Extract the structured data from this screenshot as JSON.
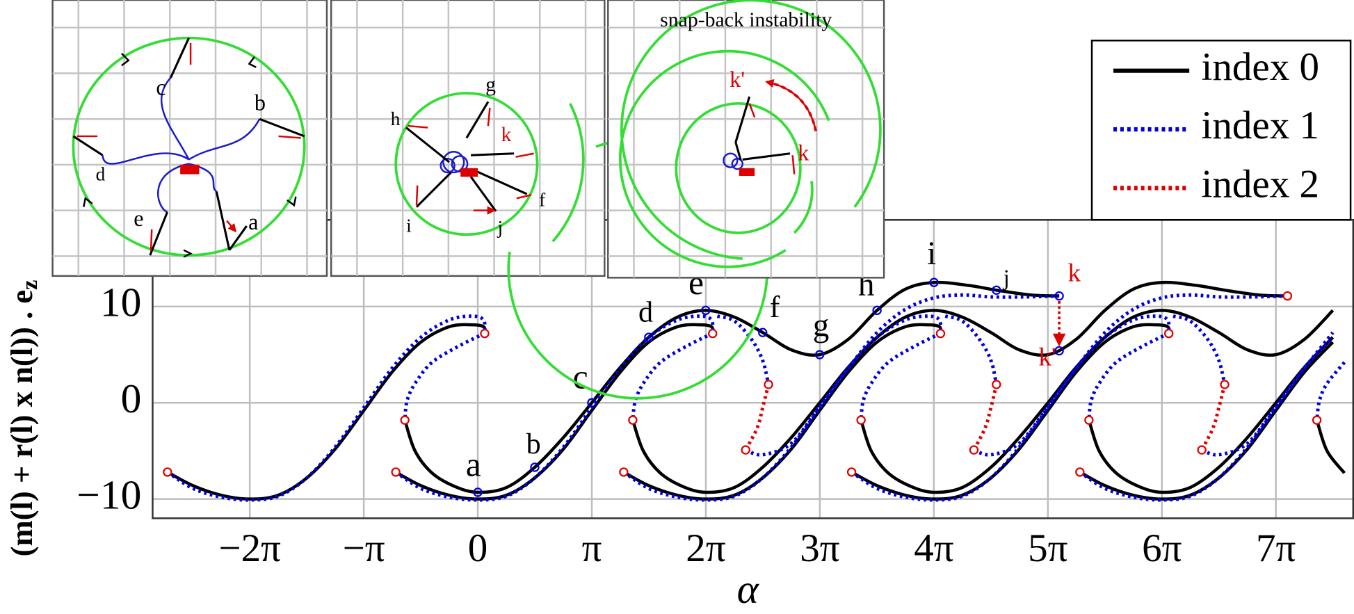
{
  "chart_data": {
    "type": "line",
    "xlabel": "α",
    "ylabel": "(m(l) + r(l) x n(l)) . e",
    "ylabel_sub": "z",
    "xlim": [
      -8.96,
      24.12
    ],
    "ylim": [
      -12,
      19
    ],
    "xticks": [
      {
        "value": -6.2832,
        "label": "−2π"
      },
      {
        "value": -3.1416,
        "label": "−π"
      },
      0,
      {
        "value": 3.1416,
        "label": "π"
      },
      {
        "value": 6.2832,
        "label": "2π"
      },
      {
        "value": 9.4248,
        "label": "3π"
      },
      {
        "value": 12.5664,
        "label": "4π"
      },
      {
        "value": 15.708,
        "label": "5π"
      },
      {
        "value": 18.8496,
        "label": "6π"
      },
      {
        "value": 21.9911,
        "label": "7π"
      }
    ],
    "yticks": [
      {
        "value": -10,
        "label": "−10"
      },
      0,
      10
    ],
    "grid": true,
    "legend": "upper right",
    "series": [
      {
        "name": "index 0",
        "color": "#000000",
        "style": "solid",
        "segments": [
          {
            "x": [
              -8.55,
              -7.85,
              -7.07,
              -6.28,
              -5.5,
              -4.71,
              -3.93,
              -3.14,
              -2.36,
              -1.57,
              -0.79,
              -0.16,
              0.16,
              0.19
            ],
            "values": [
              -7.2,
              -8.6,
              -9.6,
              -10,
              -9.6,
              -7.8,
              -4.8,
              -0.8,
              3.2,
              6.3,
              7.9,
              8.1,
              7.9,
              7.2
            ]
          },
          {
            "x": [
              -2.26,
              -1.57,
              -0.79,
              0,
              0.79,
              1.57,
              2.36,
              3.14,
              3.93,
              4.71,
              5.5,
              6.13,
              6.44,
              6.47
            ],
            "values": [
              -7.2,
              -8.6,
              -9.6,
              -10,
              -9.6,
              -7.8,
              -4.8,
              -0.8,
              3.2,
              6.3,
              7.9,
              8.1,
              7.9,
              7.2
            ]
          },
          {
            "x": [
              4.02,
              4.71,
              5.5,
              6.28,
              7.07,
              7.85,
              8.64,
              9.42,
              10.21,
              11.0,
              11.78,
              12.41,
              12.72,
              12.75
            ],
            "values": [
              -7.2,
              -8.6,
              -9.6,
              -10,
              -9.6,
              -7.8,
              -4.8,
              -0.8,
              3.2,
              6.3,
              7.9,
              8.1,
              7.9,
              7.2
            ]
          },
          {
            "x": [
              10.3,
              11.0,
              11.78,
              12.57,
              13.35,
              14.14,
              14.92,
              15.71,
              16.49,
              17.28,
              18.06,
              18.69,
              19.01,
              19.04
            ],
            "values": [
              -7.2,
              -8.6,
              -9.6,
              -10,
              -9.6,
              -7.8,
              -4.8,
              -0.8,
              3.2,
              6.3,
              7.9,
              8.1,
              7.9,
              7.2
            ]
          },
          {
            "x": [
              16.59,
              17.28,
              18.06,
              18.85,
              19.63,
              20.42,
              21.21,
              21.99,
              22.78,
              23.56
            ],
            "values": [
              -7.2,
              -8.6,
              -9.6,
              -10,
              -9.6,
              -7.8,
              -4.8,
              -0.8,
              3.2,
              6.3
            ]
          },
          {
            "x": [
              -2.01,
              -1.73,
              -1.26,
              -0.63,
              0,
              0.79,
              1.57,
              2.36,
              3.14,
              3.93,
              4.71,
              5.5,
              6.28,
              7.07,
              7.85,
              8.64,
              9.42,
              10.21,
              11.0,
              11.78,
              12.57,
              13.51,
              14.29,
              15.24,
              16.02
            ],
            "values": [
              -1.8,
              -5,
              -7.3,
              -8.7,
              -9.3,
              -8.8,
              -6.7,
              -3.6,
              0,
              3.7,
              6.8,
              8.9,
              9.6,
              8.9,
              7.3,
              5.5,
              5,
              6.6,
              9.6,
              11.8,
              12.5,
              12.2,
              11.7,
              11.2,
              11.1
            ]
          },
          {
            "x": [
              4.27,
              4.56,
              5.03,
              5.65,
              6.28,
              7.07,
              7.85,
              8.64,
              9.42,
              10.21,
              11.0,
              11.78,
              12.57,
              13.35,
              14.14,
              14.92,
              15.71,
              16.49,
              17.28,
              18.06,
              18.85,
              19.79,
              20.58,
              21.52,
              22.31
            ],
            "values": [
              -1.8,
              -5,
              -7.3,
              -8.7,
              -9.3,
              -8.8,
              -6.7,
              -3.6,
              0,
              3.7,
              6.8,
              8.9,
              9.6,
              8.9,
              7.3,
              5.5,
              5,
              6.6,
              9.6,
              11.8,
              12.5,
              12.2,
              11.7,
              11.2,
              11.1
            ]
          },
          {
            "x": [
              10.56,
              10.84,
              11.31,
              11.94,
              12.57,
              13.35,
              14.14,
              14.92,
              15.71,
              16.49,
              17.28,
              18.06,
              18.85,
              19.63,
              20.42,
              21.21,
              21.99,
              22.78,
              23.56
            ],
            "values": [
              -1.8,
              -5,
              -7.3,
              -8.7,
              -9.3,
              -8.8,
              -6.7,
              -3.6,
              0,
              3.7,
              6.8,
              8.9,
              9.6,
              8.9,
              7.3,
              5.5,
              5,
              6.6,
              9.6
            ]
          },
          {
            "x": [
              16.84,
              17.12,
              17.59,
              18.22,
              18.85,
              19.63,
              20.42,
              21.21,
              21.99,
              22.78,
              23.56
            ],
            "values": [
              -1.8,
              -5,
              -7.3,
              -8.7,
              -9.3,
              -8.8,
              -6.7,
              -3.6,
              0,
              3.7,
              6.8
            ]
          },
          {
            "x": [
              23.12,
              23.4,
              23.88
            ],
            "values": [
              -1.8,
              -5,
              -7.3
            ]
          }
        ]
      },
      {
        "name": "index 1",
        "color": "#0000dd",
        "style": "dotted",
        "segments": [
          {
            "x": [
              -8.55,
              -7.85,
              -7.07,
              -6.28,
              -5.5,
              -4.71,
              -3.93,
              -3.14,
              -2.36,
              -1.57,
              -0.79,
              -0.16,
              0.16,
              0.19
            ],
            "values": [
              -7.2,
              -8.9,
              -9.8,
              -10.1,
              -9.7,
              -7.8,
              -4.6,
              -0.5,
              3.6,
              6.8,
              8.6,
              9.0,
              8.6,
              7.2
            ]
          },
          {
            "x": [
              -2.26,
              -1.57,
              -0.79,
              0,
              0.79,
              1.57,
              2.36,
              3.14,
              3.93,
              4.71,
              5.5,
              6.13,
              6.44,
              6.47
            ],
            "values": [
              -7.2,
              -8.9,
              -9.8,
              -10.1,
              -9.7,
              -7.8,
              -4.6,
              -0.5,
              3.6,
              6.8,
              8.6,
              9.0,
              8.6,
              7.2
            ]
          },
          {
            "x": [
              4.02,
              4.71,
              5.5,
              6.28,
              7.07,
              7.85,
              8.64,
              9.42,
              10.21,
              11.0,
              11.78,
              12.41,
              12.72,
              12.75
            ],
            "values": [
              -7.2,
              -8.9,
              -9.8,
              -10.1,
              -9.7,
              -7.8,
              -4.6,
              -0.5,
              3.6,
              6.8,
              8.6,
              9.0,
              8.6,
              7.2
            ]
          },
          {
            "x": [
              10.3,
              11.0,
              11.78,
              12.57,
              13.35,
              14.14,
              14.92,
              15.71,
              16.49,
              17.28,
              18.06,
              18.69,
              19.01,
              19.04
            ],
            "values": [
              -7.2,
              -8.9,
              -9.8,
              -10.1,
              -9.7,
              -7.8,
              -4.6,
              -0.5,
              3.6,
              6.8,
              8.6,
              9.0,
              8.6,
              7.2
            ]
          },
          {
            "x": [
              16.59,
              17.28,
              18.06,
              18.85,
              19.63,
              20.42,
              21.21,
              21.99,
              22.78,
              23.56
            ],
            "values": [
              -7.2,
              -8.9,
              -9.8,
              -10.1,
              -9.7,
              -7.8,
              -4.6,
              -0.5,
              3.6,
              6.8
            ]
          },
          {
            "x": [
              0.19,
              -0.47,
              -1.26,
              -1.73,
              -1.95,
              -2.01
            ],
            "values": [
              7.2,
              6.0,
              4.2,
              2.0,
              0.2,
              -1.8
            ]
          },
          {
            "x": [
              6.47,
              5.81,
              5.03,
              4.56,
              4.34,
              4.27
            ],
            "values": [
              7.2,
              6.0,
              4.2,
              2.0,
              0.2,
              -1.8
            ]
          },
          {
            "x": [
              12.75,
              12.1,
              11.31,
              10.84,
              10.62,
              10.56
            ],
            "values": [
              7.2,
              6.0,
              4.2,
              2.0,
              0.2,
              -1.8
            ]
          },
          {
            "x": [
              19.04,
              18.38,
              17.59,
              17.12,
              16.9,
              16.84
            ],
            "values": [
              7.2,
              6.0,
              4.2,
              2.0,
              0.2,
              -1.8
            ]
          },
          {
            "x": [
              23.88,
              23.4,
              23.19,
              23.12
            ],
            "values": [
              4.2,
              2.0,
              0.2,
              -1.8
            ]
          },
          {
            "x": [
              6.6,
              7.07,
              7.54,
              7.85,
              8.01
            ],
            "values": [
              9.0,
              8.5,
              6.6,
              4.4,
              1.9
            ]
          },
          {
            "x": [
              12.88,
              13.35,
              13.82,
              14.14,
              14.29
            ],
            "values": [
              9.0,
              8.5,
              6.6,
              4.4,
              1.9
            ]
          },
          {
            "x": [
              19.16,
              19.63,
              20.11,
              20.42,
              20.58
            ],
            "values": [
              9.0,
              8.5,
              6.6,
              4.4,
              1.9
            ]
          },
          {
            "x": [
              7.38,
              7.85,
              8.64,
              9.42,
              10.21,
              11.0,
              11.78,
              12.57,
              13.35,
              14.14,
              15.08,
              16.02
            ],
            "values": [
              -4.9,
              -5.4,
              -4.2,
              -0.4,
              3.6,
              7.3,
              9.7,
              10.9,
              11.2,
              11.0,
              11.0,
              11.1
            ]
          },
          {
            "x": [
              13.67,
              14.14,
              14.92,
              15.71,
              16.49,
              17.28,
              18.06,
              18.85,
              19.63,
              20.42,
              21.36,
              22.31
            ],
            "values": [
              -4.9,
              -5.4,
              -4.2,
              -0.4,
              3.6,
              7.3,
              9.7,
              10.9,
              11.2,
              11.0,
              11.0,
              11.1
            ]
          },
          {
            "x": [
              19.95,
              20.42,
              21.21,
              21.99,
              22.78,
              23.56
            ],
            "values": [
              -4.9,
              -5.4,
              -4.2,
              -0.4,
              3.6,
              7.3
            ]
          }
        ]
      },
      {
        "name": "index 2",
        "color": "#dd0000",
        "style": "dotted",
        "segments": [
          {
            "x": [
              8.01,
              7.85,
              7.7,
              7.38
            ],
            "values": [
              1.9,
              -0.5,
              -2.6,
              -4.9
            ]
          },
          {
            "x": [
              14.29,
              14.14,
              13.98,
              13.67
            ],
            "values": [
              1.9,
              -0.5,
              -2.6,
              -4.9
            ]
          },
          {
            "x": [
              20.58,
              20.42,
              20.26,
              19.95
            ],
            "values": [
              1.9,
              -0.5,
              -2.6,
              -4.9
            ]
          }
        ]
      }
    ],
    "branch_points": {
      "color": "#dd0000",
      "x": [
        -8.55,
        0.19,
        -2.01,
        -2.26,
        6.47,
        4.27,
        4.02,
        8.01,
        7.38,
        12.75,
        10.56,
        10.3,
        14.29,
        13.67,
        19.04,
        16.84,
        16.59,
        20.58,
        19.95,
        23.12,
        22.31
      ],
      "values": [
        -7.2,
        7.2,
        -1.8,
        -7.2,
        7.2,
        -1.8,
        -7.2,
        1.9,
        -4.9,
        7.2,
        -1.8,
        -7.2,
        1.9,
        -4.9,
        7.2,
        -1.8,
        -7.2,
        1.9,
        -4.9,
        -1.8,
        11.1
      ]
    },
    "points": {
      "color": "#0000dd",
      "labels": [
        "a",
        "b",
        "c",
        "d",
        "e",
        "f",
        "g",
        "h",
        "i",
        "j",
        "k",
        "k'"
      ],
      "x": [
        0,
        1.57,
        3.14,
        4.71,
        6.28,
        7.85,
        9.42,
        11.0,
        12.57,
        14.29,
        16.02,
        16.02
      ],
      "values": [
        -9.3,
        -6.7,
        0,
        6.8,
        9.6,
        7.3,
        5,
        9.6,
        12.5,
        11.7,
        11.1,
        5.4
      ],
      "colors": [
        "#000000",
        "#000000",
        "#000000",
        "#000000",
        "#000000",
        "#000000",
        "#000000",
        "#000000",
        "#000000",
        "#000000",
        "#dd0000",
        "#dd0000"
      ]
    }
  },
  "insets": [
    {
      "labels": [
        "c",
        "b",
        "d",
        "e",
        "a"
      ]
    },
    {
      "labels": [
        "g",
        "h",
        "k",
        "f",
        "i",
        "j"
      ]
    },
    {
      "title": "snap-back instability",
      "labels": [
        "k'",
        "k"
      ]
    }
  ]
}
